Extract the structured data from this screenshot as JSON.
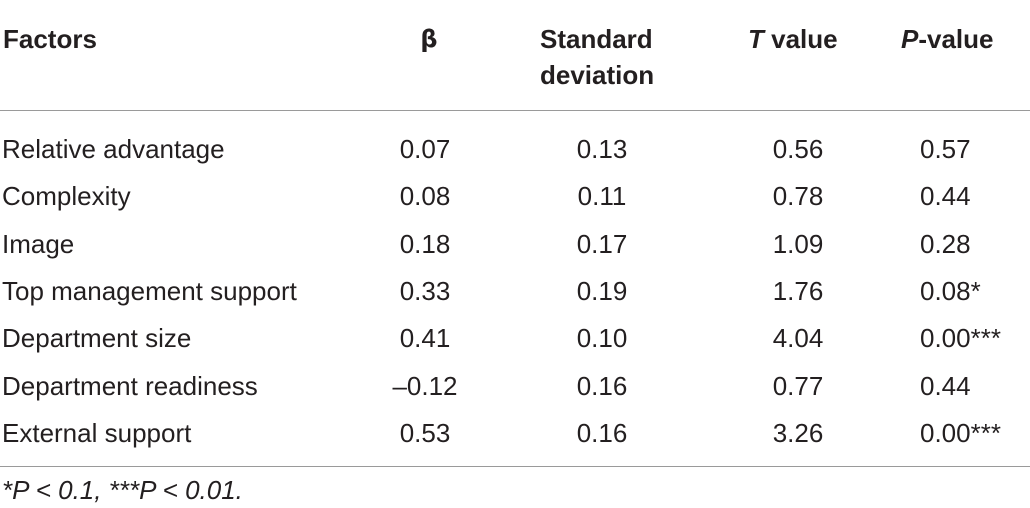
{
  "table": {
    "headers": {
      "factors": "Factors",
      "beta": "β",
      "sd_line1": "Standard",
      "sd_line2": "deviation",
      "t_italic": "T",
      "t_rest": " value",
      "p_italic": "P",
      "p_rest": "-value"
    },
    "rows": [
      {
        "factor": "Relative advantage",
        "beta": "0.07",
        "sd": "0.13",
        "t": "0.56",
        "p": "0.57"
      },
      {
        "factor": "Complexity",
        "beta": "0.08",
        "sd": "0.11",
        "t": "0.78",
        "p": "0.44"
      },
      {
        "factor": "Image",
        "beta": "0.18",
        "sd": "0.17",
        "t": "1.09",
        "p": "0.28"
      },
      {
        "factor": "Top management support",
        "beta": "0.33",
        "sd": "0.19",
        "t": "1.76",
        "p": "0.08*"
      },
      {
        "factor": "Department size",
        "beta": "0.41",
        "sd": "0.10",
        "t": "4.04",
        "p": "0.00***"
      },
      {
        "factor": "Department readiness",
        "beta": "–0.12",
        "sd": "0.16",
        "t": "0.77",
        "p": "0.44"
      },
      {
        "factor": "External support",
        "beta": "0.53",
        "sd": "0.16",
        "t": "3.26",
        "p": "0.00***"
      }
    ],
    "footnote": "*P < 0.1, ***P < 0.01."
  }
}
